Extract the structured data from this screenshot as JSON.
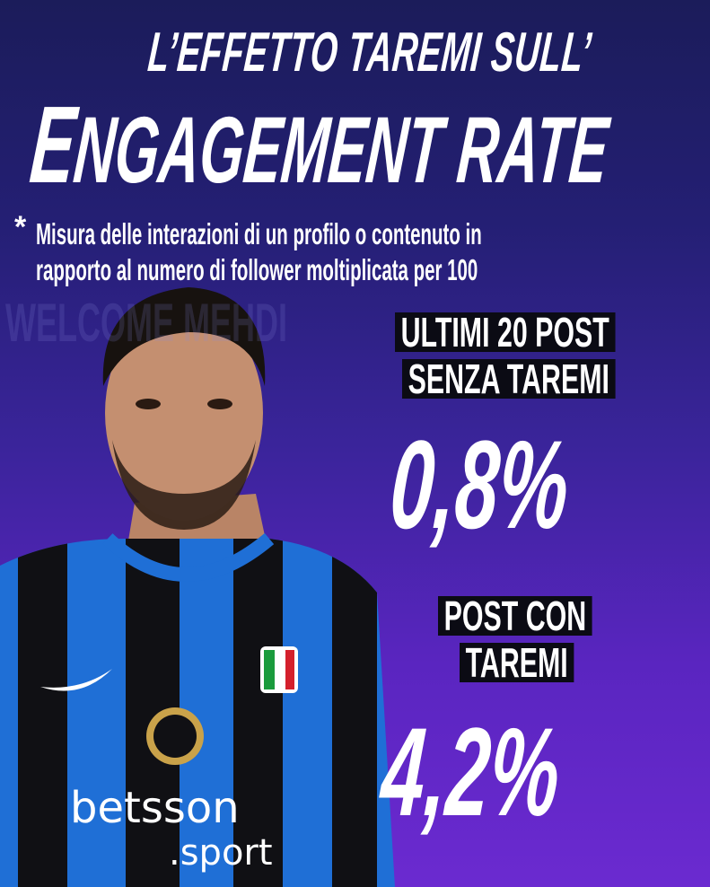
{
  "header": {
    "title_line1": "L’EFFETTO TAREMI SULL’",
    "title_line2_initial": "E",
    "title_line2_rest": "NGAGEMENT RATE"
  },
  "footnote": {
    "asterisk": "*",
    "line1": "Misura delle interazioni di un profilo o contenuto in",
    "line2": "rapporto al numero di follower moltiplicata per 100"
  },
  "background_text": "WELCOME MEHDI",
  "stats": [
    {
      "label_line1": "ULTIMI 20 POST",
      "label_line2": "SENZA TAREMI",
      "value": "0,8%"
    },
    {
      "label_line1": "POST CON",
      "label_line2": "TAREMI",
      "value": "4,2%"
    }
  ],
  "sponsor": {
    "name": "betsson",
    "suffix": ".sport"
  },
  "colors": {
    "bg_top": "#1b1c5a",
    "bg_bottom": "#6b2ad0",
    "label_bg": "#0b0b14",
    "text": "#ffffff",
    "kit_blue": "#1f6fd6",
    "kit_black": "#101014"
  }
}
